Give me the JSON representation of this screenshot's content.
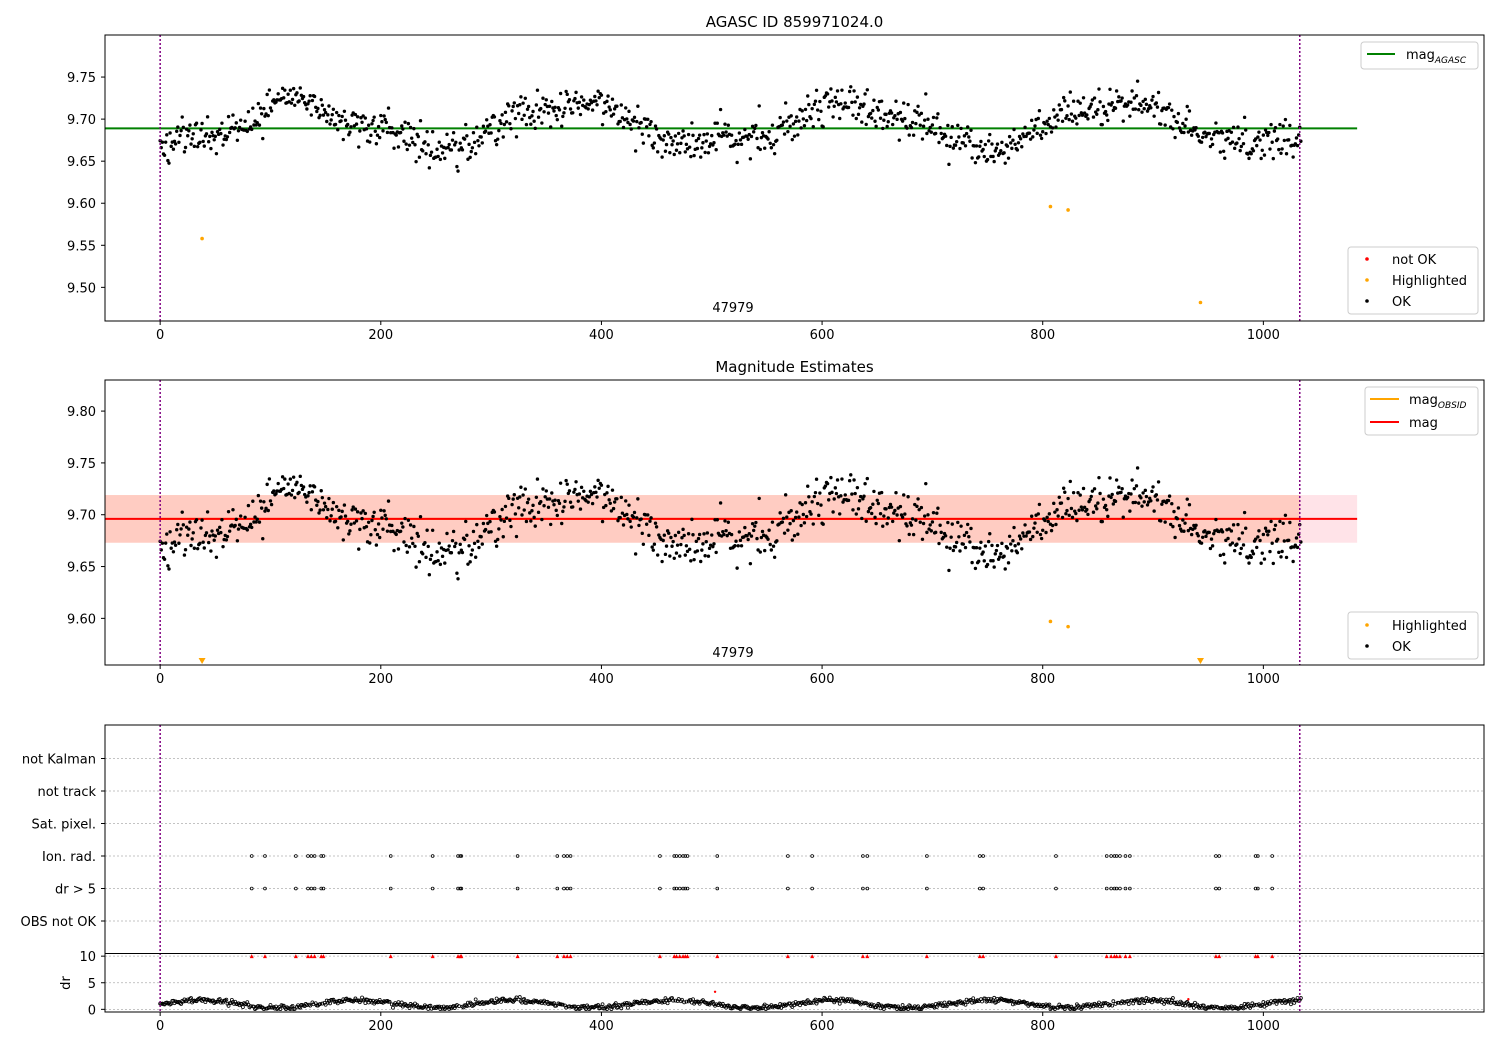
{
  "chart_data": [
    {
      "type": "scatter",
      "title": "AGASC ID 859971024.0",
      "annotation": "47979",
      "xlim": [
        -50,
        1200
      ],
      "ylim": [
        9.46,
        9.8
      ],
      "xticks": [
        0,
        200,
        400,
        600,
        800,
        1000
      ],
      "yticks": [
        9.5,
        9.55,
        9.6,
        9.65,
        9.7,
        9.75
      ],
      "ytick_labels": [
        "9.50",
        "9.55",
        "9.60",
        "9.65",
        "9.70",
        "9.75"
      ],
      "reference_lines": [
        {
          "name": "mag_AGASC",
          "label": "mag",
          "label_sub": "AGASC",
          "y": 9.689,
          "x_range": [
            -50,
            1085
          ],
          "color": "#008000"
        }
      ],
      "vlines": [
        0,
        1033
      ],
      "legend_lines": {
        "placement": "top-right"
      },
      "legend_points": {
        "placement": "lower-right",
        "items": [
          {
            "label": "not OK",
            "color": "#ff0000"
          },
          {
            "label": "Highlighted",
            "color": "#ffa500"
          },
          {
            "label": "OK",
            "color": "#000000"
          }
        ]
      },
      "highlighted": {
        "x": [
          38,
          807,
          823,
          943
        ],
        "y": [
          9.558,
          9.596,
          9.592,
          9.482
        ]
      }
    },
    {
      "type": "scatter",
      "title": "Magnitude Estimates",
      "annotation": "47979",
      "xlim": [
        -50,
        1200
      ],
      "ylim": [
        9.555,
        9.83
      ],
      "xticks": [
        0,
        200,
        400,
        600,
        800,
        1000
      ],
      "yticks": [
        9.6,
        9.65,
        9.7,
        9.75,
        9.8
      ],
      "ytick_labels": [
        "9.60",
        "9.65",
        "9.70",
        "9.75",
        "9.80"
      ],
      "reference_lines": [
        {
          "name": "mag_OBSID",
          "label": "mag",
          "label_sub": "OBSID",
          "y": 9.696,
          "x_range": [
            0,
            1033
          ],
          "color": "#ffa500"
        },
        {
          "name": "mag",
          "label": "mag",
          "label_sub": "",
          "y": 9.696,
          "x_range": [
            -50,
            1085
          ],
          "color": "#ff0000"
        }
      ],
      "bands": [
        {
          "name": "mag-band",
          "y0": 9.673,
          "y1": 9.719,
          "x_range": [
            -50,
            1085
          ],
          "color": "#ffc0cb",
          "opacity": 0.45
        },
        {
          "name": "obsid-band",
          "y0": 9.673,
          "y1": 9.719,
          "x_range": [
            -50,
            1033
          ],
          "color": "#ffa07a",
          "opacity": 0.35
        }
      ],
      "vlines": [
        0,
        1033
      ],
      "legend_lines": {
        "placement": "top-right"
      },
      "legend_points": {
        "placement": "lower-right",
        "items": [
          {
            "label": "Highlighted",
            "color": "#ffa500"
          },
          {
            "label": "OK",
            "color": "#000000"
          }
        ]
      },
      "highlighted": {
        "x": [
          807,
          823
        ],
        "y": [
          9.597,
          9.592
        ]
      },
      "out_of_range_markers": {
        "x": [
          38,
          943
        ],
        "color": "#ffa500"
      }
    },
    {
      "type": "scatter",
      "title": "",
      "xlim": [
        -50,
        1200
      ],
      "xticks": [
        0,
        200,
        400,
        600,
        800,
        1000
      ],
      "flag_rows": [
        "not Kalman",
        "not track",
        "Sat. pixel.",
        "Ion. rad.",
        "dr > 5",
        "OBS not OK"
      ],
      "flag_points": {
        "Ion. rad.": [
          83,
          95,
          123,
          134,
          137,
          140,
          146,
          148,
          209,
          247,
          270,
          272,
          273,
          324,
          360,
          366,
          369,
          372,
          453,
          466,
          468,
          471,
          474,
          476,
          478,
          505,
          569,
          591,
          637,
          641,
          695,
          743,
          746,
          812,
          858,
          862,
          865,
          867,
          870,
          875,
          879,
          957,
          960,
          993,
          995,
          1008
        ],
        "dr > 5": [
          83,
          95,
          123,
          134,
          137,
          140,
          146,
          148,
          209,
          247,
          270,
          272,
          273,
          324,
          360,
          366,
          369,
          372,
          453,
          466,
          468,
          471,
          474,
          476,
          478,
          505,
          569,
          591,
          637,
          641,
          695,
          743,
          746,
          812,
          858,
          862,
          865,
          867,
          870,
          875,
          879,
          957,
          960,
          993,
          995,
          1008
        ]
      },
      "dr_ylabel": "dr",
      "dr_ylim": [
        -0.5,
        10.5
      ],
      "dr_yticks": [
        0,
        5,
        10
      ],
      "dr_clipped_x": [
        83,
        95,
        123,
        134,
        137,
        140,
        146,
        148,
        209,
        247,
        270,
        272,
        273,
        324,
        360,
        366,
        369,
        372,
        453,
        466,
        468,
        471,
        474,
        476,
        478,
        505,
        569,
        591,
        637,
        641,
        695,
        743,
        746,
        812,
        858,
        862,
        865,
        867,
        870,
        875,
        879,
        957,
        960,
        993,
        995,
        1008
      ],
      "dr_outliers": {
        "x": [
          503,
          932
        ],
        "y": [
          3.3,
          1.9
        ]
      },
      "vlines": [
        0,
        1033
      ]
    }
  ]
}
